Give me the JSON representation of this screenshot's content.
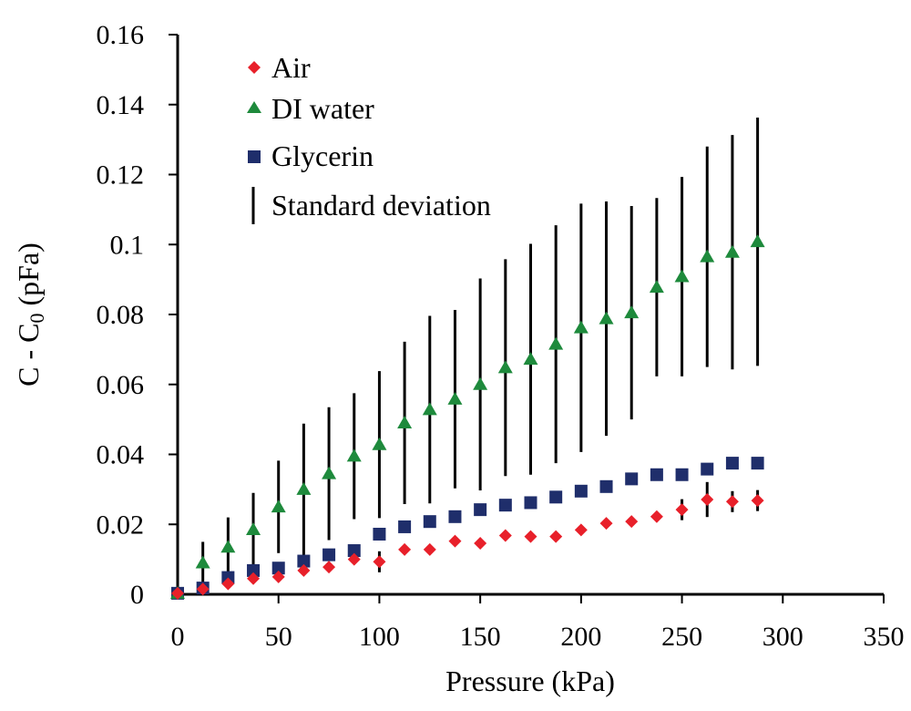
{
  "chart_data": {
    "type": "scatter",
    "title": "",
    "xlabel": "Pressure (kPa)",
    "ylabel": {
      "prefix": "C - C",
      "subscript": "0",
      "suffix": " (pFa)"
    },
    "xlim": [
      0,
      350
    ],
    "ylim": [
      0,
      0.16
    ],
    "x_ticks": [
      "0",
      "50",
      "100",
      "150",
      "200",
      "250",
      "300",
      "350"
    ],
    "y_ticks": [
      "0",
      "0.02",
      "0.04",
      "0.06",
      "0.08",
      "0.1",
      "0.12",
      "0.14",
      "0.16"
    ],
    "x_tick_values": [
      0,
      50,
      100,
      150,
      200,
      250,
      300,
      350
    ],
    "y_tick_values": [
      0,
      0.02,
      0.04,
      0.06,
      0.08,
      0.1,
      0.12,
      0.14,
      0.16
    ],
    "grid": false,
    "legend_position": "top-left",
    "legend_entries": [
      "Air",
      "DI water",
      "Glycerin",
      "Standard deviation"
    ],
    "x": [
      0,
      12.5,
      25,
      37.5,
      50,
      62.5,
      75,
      87.5,
      100,
      112.5,
      125,
      137.5,
      150,
      162.5,
      175,
      187.5,
      200,
      212.5,
      225,
      237.5,
      250,
      262.5,
      275,
      287.5
    ],
    "series": [
      {
        "name": "Air",
        "marker": "diamond",
        "color": "#e8202a",
        "values": [
          0.0003,
          0.0015,
          0.003,
          0.0045,
          0.005,
          0.0068,
          0.0078,
          0.01,
          0.0093,
          0.0128,
          0.0128,
          0.0152,
          0.0146,
          0.0168,
          0.0165,
          0.0165,
          0.0184,
          0.0203,
          0.0208,
          0.0222,
          0.0242,
          0.0271,
          0.0265,
          0.0268
        ],
        "std": [
          0,
          0,
          0,
          0,
          0,
          0,
          0,
          0,
          0.003,
          0,
          0,
          0,
          0,
          0,
          0,
          0,
          0,
          0,
          0,
          0,
          0.003,
          0.005,
          0.003,
          0.003
        ]
      },
      {
        "name": "DI water",
        "marker": "triangle",
        "color": "#1e8a3c",
        "values": [
          0.0003,
          0.009,
          0.0135,
          0.0185,
          0.025,
          0.03,
          0.0345,
          0.0395,
          0.0428,
          0.049,
          0.0528,
          0.0558,
          0.06,
          0.0648,
          0.0672,
          0.0715,
          0.0762,
          0.0788,
          0.0805,
          0.0878,
          0.0908,
          0.0965,
          0.0978,
          0.1008
        ],
        "std": [
          0,
          0.006,
          0.0085,
          0.0105,
          0.0132,
          0.0188,
          0.019,
          0.018,
          0.021,
          0.0232,
          0.0268,
          0.0255,
          0.0303,
          0.031,
          0.033,
          0.034,
          0.0355,
          0.0335,
          0.0305,
          0.0255,
          0.0285,
          0.0315,
          0.0335,
          0.0355
        ]
      },
      {
        "name": "Glycerin",
        "marker": "square",
        "color": "#1f2e6b",
        "values": [
          0.0003,
          0.0018,
          0.0048,
          0.0068,
          0.0075,
          0.0095,
          0.0113,
          0.0125,
          0.0172,
          0.0193,
          0.0208,
          0.0222,
          0.0242,
          0.0255,
          0.0262,
          0.0278,
          0.0295,
          0.0308,
          0.033,
          0.0342,
          0.0342,
          0.0358,
          0.0375,
          0.0375
        ],
        "std": [
          0,
          0,
          0,
          0,
          0,
          0,
          0,
          0,
          0,
          0,
          0,
          0,
          0,
          0,
          0,
          0,
          0,
          0,
          0,
          0,
          0,
          0,
          0,
          0
        ]
      }
    ]
  }
}
